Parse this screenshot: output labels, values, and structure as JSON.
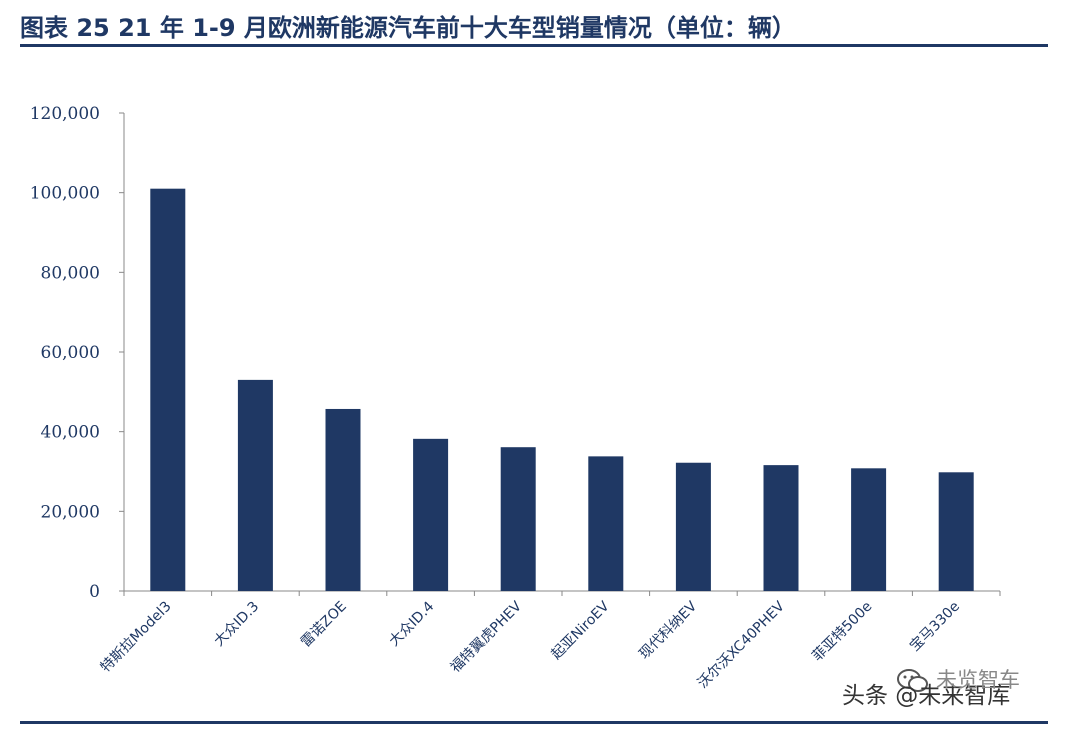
{
  "figure_title": "图表 25   21 年 1-9 月欧洲新能源汽车前十大车型销量情况（单位：辆）",
  "watermark": {
    "text": "头条 @未来智库",
    "overlay_text": "未览智车",
    "icon": "wechat-icon"
  },
  "colors": {
    "bar": "#1f3864",
    "title": "#1f3864",
    "axis": "#888888",
    "tick_text": "#1f3864"
  },
  "chart_data": {
    "type": "bar",
    "title": "",
    "xlabel": "",
    "ylabel": "",
    "ylim": [
      0,
      120000
    ],
    "yticks": [
      0,
      20000,
      40000,
      60000,
      80000,
      100000,
      120000
    ],
    "ytick_labels": [
      "0",
      "20,000",
      "40,000",
      "60,000",
      "80,000",
      "100,000",
      "120,000"
    ],
    "grid": false,
    "legend": "none",
    "categories": [
      "特斯拉Model3",
      "大众ID.3",
      "雷诺ZOE",
      "大众ID.4",
      "福特翼虎PHEV",
      "起亚NiroEV",
      "现代科纳EV",
      "沃尔沃XC40PHEV",
      "菲亚特500e",
      "宝马330e"
    ],
    "values": [
      101000,
      53000,
      45700,
      38200,
      36100,
      33800,
      32200,
      31600,
      30800,
      29800
    ]
  }
}
